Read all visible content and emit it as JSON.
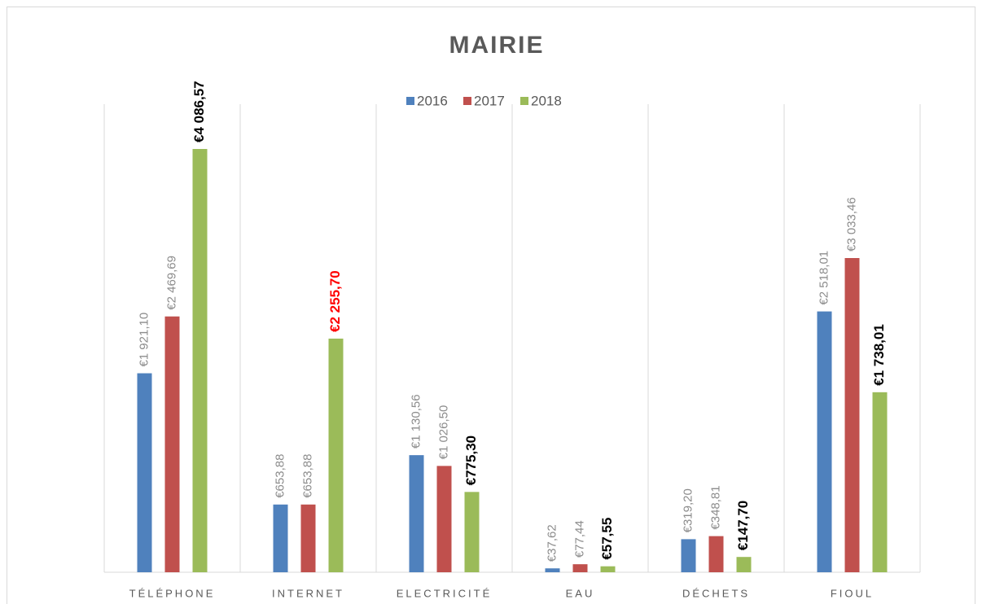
{
  "chart_data": {
    "type": "bar",
    "title": "MAIRIE",
    "categories": [
      "TÉLÉPHONE",
      "INTERNET",
      "ELECTRICITÉ",
      "EAU",
      "DÉCHETS",
      "FIOUL"
    ],
    "series": [
      {
        "name": "2016",
        "color": "#4f81bd",
        "label_color": "#8c8c8c",
        "label_bold": false,
        "values": [
          1921.1,
          653.88,
          1130.56,
          37.62,
          319.2,
          2518.01
        ],
        "value_labels": [
          "€1 921,10",
          "€653,88",
          "€1 130,56",
          "€37,62",
          "€319,20",
          "€2 518,01"
        ]
      },
      {
        "name": "2017",
        "color": "#c0504d",
        "label_color": "#8c8c8c",
        "label_bold": false,
        "values": [
          2469.69,
          653.88,
          1026.5,
          77.44,
          348.81,
          3033.46
        ],
        "value_labels": [
          "€2 469,69",
          "€653,88",
          "€1 026,50",
          "€77,44",
          "€348,81",
          "€3 033,46"
        ]
      },
      {
        "name": "2018",
        "color": "#9bbb59",
        "label_colors": [
          "#000000",
          "#ff0000",
          "#000000",
          "#000000",
          "#000000",
          "#000000"
        ],
        "label_bold": true,
        "values": [
          4086.57,
          2255.7,
          775.3,
          57.55,
          147.7,
          1738.01
        ],
        "value_labels": [
          "€4 086,57",
          "€2 255,70",
          "€775,30",
          "€57,55",
          "€147,70",
          "€1 738,01"
        ]
      }
    ],
    "legend": "top"
  }
}
